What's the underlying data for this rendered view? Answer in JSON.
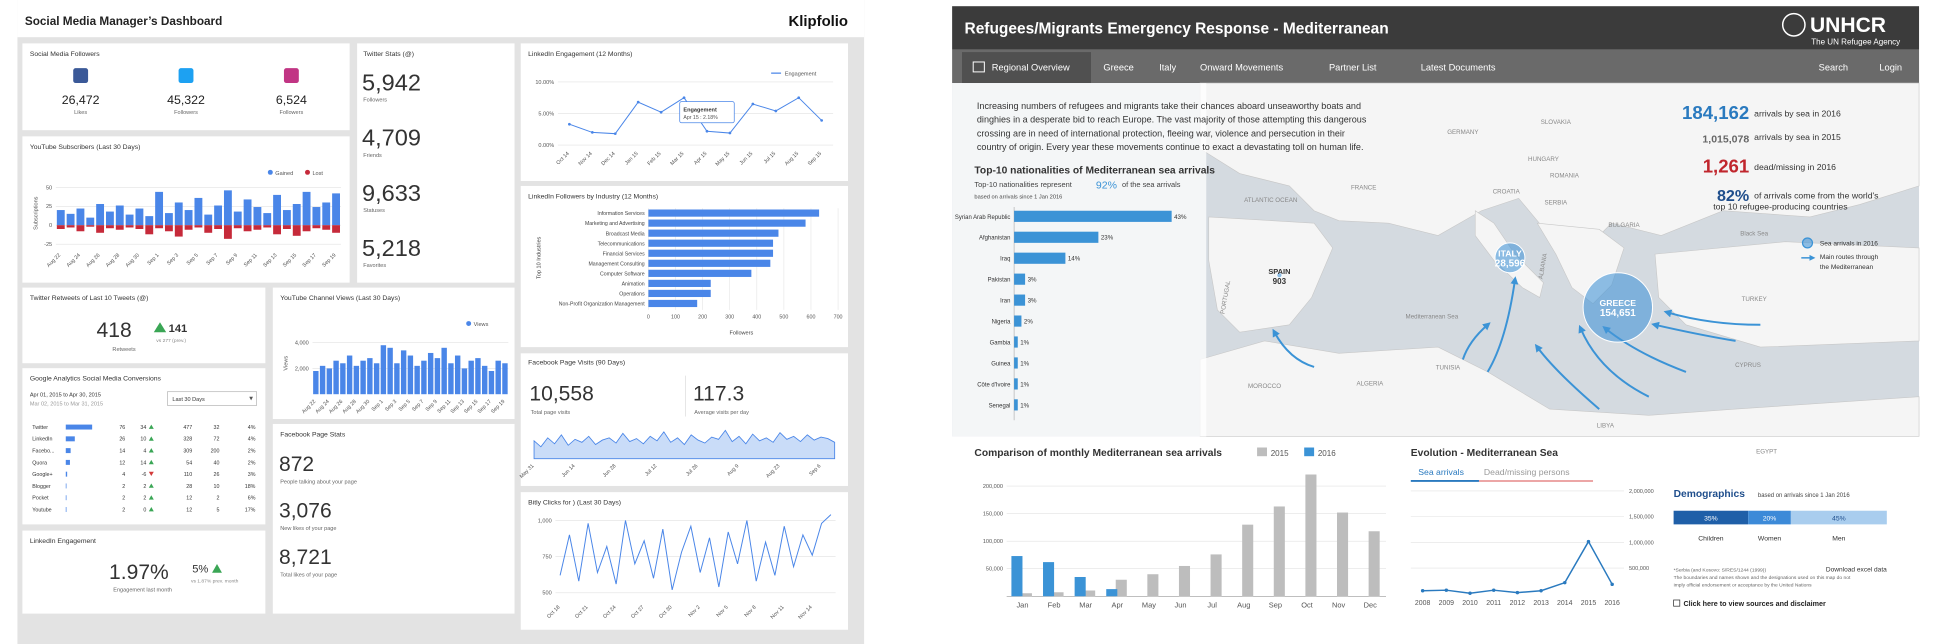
{
  "left": {
    "title": "Social Media Manager’s Dashboard",
    "brand": "Klipfolio",
    "followers": {
      "title": "Social Media Followers",
      "counts": [
        "26,472",
        "45,322",
        "6,524"
      ],
      "labels": [
        "Likes",
        "Followers",
        "Followers"
      ]
    },
    "twitter_stats": {
      "title": "Twitter Stats (@)",
      "values": [
        "5,942",
        "4,709",
        "9,633",
        "5,218"
      ],
      "labels": [
        "Followers",
        "Friends",
        "Statuses",
        "Favorites"
      ]
    },
    "yt_subs": {
      "type": "bar",
      "title": "YouTube Subscribers (Last 30 Days)",
      "ylabel": "Subscriptions",
      "ylim": [
        -30,
        60
      ],
      "yticks": [
        50,
        25,
        0,
        -25
      ],
      "categories": [
        "Aug 22",
        null,
        "Aug 24",
        null,
        "Aug 26",
        null,
        "Aug 28",
        null,
        "Aug 30",
        null,
        "Sep 1",
        null,
        "Sep 3",
        null,
        "Sep 5",
        null,
        "Sep 7",
        null,
        "Sep 9",
        null,
        "Sep 11",
        null,
        "Sep 13",
        null,
        "Sep 15",
        null,
        "Sep 17",
        null,
        "Sep 19"
      ],
      "series": [
        {
          "name": "Gained",
          "color": "#4a86e8",
          "values": [
            20,
            15,
            22,
            10,
            28,
            18,
            26,
            14,
            22,
            12,
            44,
            16,
            30,
            20,
            36,
            14,
            26,
            46,
            18,
            34,
            24,
            16,
            40,
            20,
            28,
            44,
            24,
            30,
            42
          ]
        },
        {
          "name": "Lost",
          "color": "#c62a3a",
          "values": [
            -5,
            -3,
            -8,
            -2,
            -10,
            -4,
            -6,
            -3,
            -5,
            -12,
            -4,
            -8,
            -15,
            -6,
            -3,
            -10,
            -5,
            -18,
            -4,
            -8,
            -6,
            -3,
            -12,
            -5,
            -14,
            -8,
            -4,
            -6,
            -10
          ]
        }
      ]
    },
    "retweets": {
      "title": "Twitter Retweets of Last 10 Tweets (@)",
      "value": "418",
      "label": "Retweets",
      "delta": "141",
      "note": "vs 277 (prev.)"
    },
    "google": {
      "title": "Google Analytics Social Media Conversions",
      "date1": "Apr 01, 2015 to Apr 30, 2015",
      "date2": "Mar 02, 2015 to Mar 31, 2015",
      "dropdown": "Last 30 Days",
      "rows": [
        [
          "Twitter",
          "76",
          "34",
          "477",
          "32",
          "4%"
        ],
        [
          "LinkedIn",
          "26",
          "10",
          "328",
          "72",
          "4%"
        ],
        [
          "Facebo...",
          "14",
          "4",
          "309",
          "200",
          "2%"
        ],
        [
          "Quora",
          "12",
          "14",
          "54",
          "40",
          "2%"
        ],
        [
          "Google+",
          "4",
          "-6",
          "110",
          "26",
          "3%"
        ],
        [
          "Blogger",
          "2",
          "2",
          "28",
          "10",
          "18%"
        ],
        [
          "Pocket",
          "2",
          "2",
          "12",
          "2",
          "6%"
        ],
        [
          "Youtube",
          "2",
          "0",
          "12",
          "5",
          "17%"
        ]
      ]
    },
    "li_eng": {
      "title": "LinkedIn Engagement",
      "value": "1.97%",
      "label": "Engagement last month",
      "delta": "5%",
      "note": "vs 1.87% prev. month"
    },
    "yt_views": {
      "type": "bar",
      "title": "YouTube Channel Views (Last 30 Days)",
      "ylabel": "Views",
      "legend": "Views",
      "color": "#4a86e8",
      "ylim": [
        0,
        5000
      ],
      "yticks": [
        {
          "value": 2000,
          "label": "2,000"
        },
        {
          "value": 4000,
          "label": "4,000"
        }
      ],
      "categories": [
        "Aug 22",
        null,
        "Aug 24",
        null,
        "Aug 26",
        null,
        "Aug 28",
        null,
        "Aug 30",
        null,
        "Sep 1",
        null,
        "Sep 3",
        null,
        "Sep 5",
        null,
        "Sep 7",
        null,
        "Sep 9",
        null,
        "Sep 11",
        null,
        "Sep 13",
        null,
        "Sep 15",
        null,
        "Sep 17",
        null,
        "Sep 19"
      ],
      "values": [
        1800,
        2200,
        2000,
        2600,
        2400,
        3000,
        2200,
        2600,
        2800,
        2400,
        3800,
        3600,
        2400,
        3400,
        3000,
        2200,
        2600,
        3200,
        2800,
        3600,
        2400,
        3000,
        2000,
        2600,
        2800,
        2200,
        1800,
        2600,
        2400
      ]
    },
    "fb_stats": {
      "title": "Facebook Page Stats",
      "values": [
        "872",
        "3,076",
        "8,721"
      ],
      "labels": [
        "People talking about your page",
        "New likes of your page",
        "Total likes of your page"
      ]
    },
    "li_eng12": {
      "type": "line",
      "title": "LinkedIn Engagement (12 Months)",
      "legend": "Engagement",
      "color": "#4a86e8",
      "ylim": [
        0,
        11
      ],
      "yticks": [
        {
          "value": 0,
          "label": "0.00%"
        },
        {
          "value": 5,
          "label": "5.00%"
        },
        {
          "value": 10,
          "label": "10.00%"
        }
      ],
      "categories": [
        "Oct 14",
        "Nov 14",
        "Dec 14",
        "Jan 15",
        "Feb 15",
        "Mar 15",
        "Apr 15",
        "May 15",
        "Jun 15",
        "Jul 15",
        "Aug 15",
        "Sep 15"
      ],
      "values": [
        3.3,
        2.0,
        1.8,
        6.8,
        5.2,
        7.5,
        2.18,
        1.9,
        6.5,
        5.4,
        7.5,
        3.9
      ],
      "tooltip": {
        "title": "Engagement",
        "text": "Apr 15 : 2.18%"
      }
    },
    "li_followers": {
      "type": "hbar",
      "title": "LinkedIn Followers by Industry (12 Months)",
      "ylabel": "Top 10 Industries",
      "xlabel": "Followers",
      "color": "#4a86e8",
      "xlim": [
        0,
        700
      ],
      "xticks": [
        0,
        100,
        200,
        300,
        400,
        500,
        600,
        700
      ],
      "categories": [
        "Information Services",
        "Marketing and Advertising",
        "Broadcast Media",
        "Telecommunications",
        "Financial Services",
        "Management Consulting",
        "Computer Software",
        "Animation",
        "Operations",
        "Non-Profit Organization Management"
      ],
      "values": [
        630,
        580,
        480,
        460,
        460,
        450,
        380,
        230,
        230,
        180
      ]
    },
    "fb_visits": {
      "type": "area",
      "title": "Facebook Page Visits (90 Days)",
      "total": "10,558",
      "total_label": "Total page visits",
      "avg": "117.3",
      "avg_label": "Average visits per day",
      "color": "#4a86e8",
      "ylim": [
        0,
        250
      ],
      "categories": [
        "May 31",
        null,
        null,
        null,
        null,
        null,
        "Jun 14",
        null,
        null,
        null,
        null,
        null,
        "Jun 28",
        null,
        null,
        null,
        null,
        null,
        "Jul 12",
        null,
        null,
        null,
        null,
        null,
        "Jul 26",
        null,
        null,
        null,
        null,
        null,
        "Aug 9",
        null,
        null,
        null,
        null,
        null,
        "Aug 23",
        null,
        null,
        null,
        null,
        null,
        "Sep 6",
        null,
        null
      ],
      "values": [
        120,
        80,
        140,
        100,
        160,
        90,
        130,
        110,
        150,
        95,
        125,
        140,
        105,
        170,
        115,
        135,
        100,
        150,
        120,
        180,
        110,
        140,
        95,
        160,
        125,
        105,
        145,
        130,
        190,
        115,
        150,
        100,
        165,
        120,
        140,
        110,
        175,
        130,
        150,
        115,
        160,
        125,
        145,
        135,
        110
      ]
    },
    "bitly": {
      "type": "line",
      "title": "Bitly Clicks for ) (Last 30 Days)",
      "color": "#4a86e8",
      "ylim": [
        450,
        1050
      ],
      "yticks": [
        500,
        750,
        {
          "value": 1000,
          "label": "1,000"
        }
      ],
      "categories": [
        "Oct 18",
        null,
        null,
        "Oct 21",
        null,
        null,
        "Oct 24",
        null,
        null,
        "Oct 27",
        null,
        null,
        "Oct 30",
        null,
        null,
        "Nov 2",
        null,
        null,
        "Nov 5",
        null,
        null,
        "Nov 8",
        null,
        null,
        "Nov 11",
        null,
        null,
        "Nov 14",
        null,
        null
      ],
      "values": [
        620,
        900,
        580,
        980,
        640,
        820,
        560,
        1000,
        700,
        860,
        600,
        940,
        520,
        780,
        960,
        640,
        880,
        540,
        920,
        700,
        1000,
        580,
        850,
        620,
        960,
        680,
        900,
        760,
        980,
        1040
      ]
    }
  },
  "right": {
    "title": "Refugees/Migrants Emergency Response - Mediterranean",
    "brand": "UNHCR",
    "brand_sub": "The UN Refugee Agency",
    "nav": [
      "Regional Overview",
      "Greece",
      "Italy",
      "Onward Movements",
      "Partner List",
      "Latest Documents"
    ],
    "nav_right": [
      "Search",
      "Login"
    ],
    "intro": [
      "Increasing numbers of refugees and migrants take their chances aboard unseaworthy boats and",
      "dinghies in a desperate bid to reach Europe. The vast majority of those attempting this dangerous",
      "crossing are in need of international protection, fleeing war, violence and persecution in their",
      "country of origin. Every year these movements continue to exact a devastating toll on human life."
    ],
    "stats": [
      {
        "value": "184,162",
        "label": [
          "arrivals by sea in 2016"
        ]
      },
      {
        "value": "1,015,078",
        "label": [
          "arrivals by sea in 2015"
        ]
      },
      {
        "value": "1,261",
        "label": [
          "dead/missing in 2016"
        ]
      },
      {
        "value": "82%",
        "label": [
          "of arrivals come from the world's",
          "top 10 refugee-producing countries"
        ]
      }
    ],
    "nationalities": {
      "type": "hbar",
      "title": "Top-10 nationalities of Mediterranean sea arrivals",
      "sub1": "Top-10 nationalities represent",
      "sub_pct": "92%",
      "sub2": "of the sea arrivals",
      "note": "based on arrivals since 1 Jan 2016",
      "color": "#3b93d6",
      "xlim": [
        0,
        45
      ],
      "categories": [
        "Syrian Arab Republic",
        "Afghanistan",
        "Iraq",
        "Pakistan",
        "Iran",
        "Nigeria",
        "Gambia",
        "Guinea",
        "Côte d'Ivoire",
        "Senegal"
      ],
      "values": [
        43,
        23,
        14,
        3,
        3,
        2,
        1,
        1,
        1,
        1
      ],
      "value_labels": [
        "43%",
        "23%",
        "14%",
        "3%",
        "3%",
        "2%",
        "1%",
        "1%",
        "1%",
        "1%"
      ]
    },
    "map": {
      "labels": [
        "GERMANY",
        "FRANCE",
        "ATLANTIC OCEAN",
        "PORTUGAL",
        "MOROCCO",
        "ALGERIA",
        "TUNISIA",
        "LIBYA",
        "EGYPT",
        "TURKEY",
        "CYPRUS",
        "Mediterranean Sea",
        "Black Sea",
        "ROMANIA",
        "CROATIA",
        "SERBIA",
        "BULGARIA",
        "ALBANIA",
        "SLOVAKIA",
        "HUNGARY"
      ],
      "bubbles": [
        {
          "name": "SPAIN",
          "value": 903,
          "value_label": "903"
        },
        {
          "name": "ITALY",
          "value": 28596,
          "value_label": "28,596"
        },
        {
          "name": "GREECE",
          "value": 154651,
          "value_label": "154,651"
        }
      ],
      "legend": [
        [
          "Sea arrivals in 2016"
        ],
        [
          "Main routes through",
          "the Mediterranean"
        ]
      ]
    },
    "monthly": {
      "type": "bar",
      "title": "Comparison of monthly Mediterranean sea arrivals",
      "ylim": [
        0,
        225000
      ],
      "yticks": [
        {
          "value": 50000,
          "label": "50,000"
        },
        {
          "value": 100000,
          "label": "100,000"
        },
        {
          "value": 150000,
          "label": "150,000"
        },
        {
          "value": 200000,
          "label": "200,000"
        }
      ],
      "categories": [
        "Jan",
        "Feb",
        "Mar",
        "Apr",
        "May",
        "Jun",
        "Jul",
        "Aug",
        "Sep",
        "Oct",
        "Nov",
        "Dec"
      ],
      "series": [
        {
          "name": "2015",
          "color": "#bdbdbd",
          "values": [
            5500,
            7300,
            10500,
            30000,
            40000,
            55000,
            76000,
            130000,
            163000,
            221000,
            152000,
            118000
          ]
        },
        {
          "name": "2016",
          "color": "#3b93d6",
          "values": [
            73000,
            62000,
            35000,
            13000,
            null,
            null,
            null,
            null,
            null,
            null,
            null,
            null
          ]
        }
      ]
    },
    "evolution": {
      "type": "line",
      "title": "Evolution - Mediterranean Sea",
      "tabs": [
        "Sea arrivals",
        "Dead/missing persons"
      ],
      "color": "#2a7abf",
      "ylim": [
        0,
        2000000
      ],
      "yticks": [
        {
          "value": 500000,
          "label": "500,000"
        },
        {
          "value": 1000000,
          "label": "1,000,000"
        },
        {
          "value": 1500000,
          "label": "1,500,000"
        },
        {
          "value": 2000000,
          "label": "2,000,000"
        }
      ],
      "categories": [
        "2008",
        "2009",
        "2010",
        "2011",
        "2012",
        "2013",
        "2014",
        "2015",
        "2016"
      ],
      "values": [
        59000,
        70000,
        9700,
        70000,
        22500,
        60000,
        216000,
        1015078,
        184162
      ]
    },
    "demographics": {
      "title": "Demographics",
      "note": "based on arrivals since 1 Jan 2016",
      "segments": [
        {
          "name": "Children",
          "value": 35,
          "label": "35%",
          "color": "#1f5fa8"
        },
        {
          "name": "Women",
          "value": 20,
          "label": "20%",
          "color": "#3c8ad8"
        },
        {
          "name": "Men",
          "value": 45,
          "label": "45%",
          "color": "#a9cdee"
        }
      ]
    },
    "footer": {
      "download": "Download excel data",
      "notes": [
        "*Serbia (and Kosovo: S/RES/1244 (1999))",
        "The boundaries and names shown and the designations used on this map do not",
        "imply official endorsement or acceptance by the United Nations"
      ],
      "link": "Click here to view sources and disclaimer"
    }
  }
}
